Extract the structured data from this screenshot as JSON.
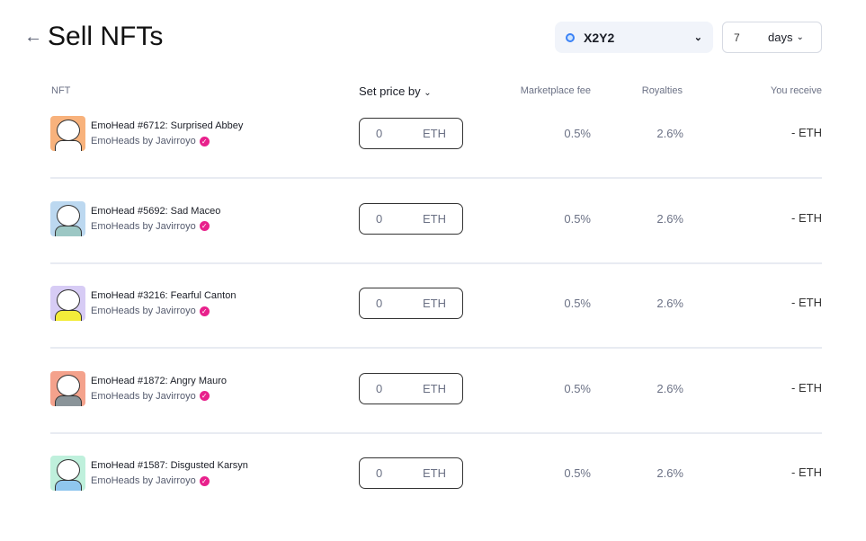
{
  "header": {
    "back_icon": "arrow-left-icon",
    "title": "Sell NFTs",
    "marketplace": "X2Y2",
    "duration_value": "7",
    "duration_unit": "days"
  },
  "columns": {
    "nft": "NFT",
    "set_price": "Set price by",
    "fee": "Marketplace fee",
    "royalties": "Royalties",
    "receive": "You receive"
  },
  "rows": [
    {
      "name": "EmoHead #6712: Surprised Abbey",
      "collection": "EmoHeads by Javirroyo",
      "price": "0",
      "currency": "ETH",
      "fee": "0.5%",
      "royalties": "2.6%",
      "receive": "- ETH",
      "color": "#f8b27c",
      "body": "#ffffff"
    },
    {
      "name": "EmoHead #5692: Sad Maceo",
      "collection": "EmoHeads by Javirroyo",
      "price": "0",
      "currency": "ETH",
      "fee": "0.5%",
      "royalties": "2.6%",
      "receive": "- ETH",
      "color": "#bcd8f0",
      "body": "#9cc7c4"
    },
    {
      "name": "EmoHead #3216: Fearful Canton",
      "collection": "EmoHeads by Javirroyo",
      "price": "0",
      "currency": "ETH",
      "fee": "0.5%",
      "royalties": "2.6%",
      "receive": "- ETH",
      "color": "#d7ccf5",
      "body": "#f3ec3a"
    },
    {
      "name": "EmoHead #1872: Angry Mauro",
      "collection": "EmoHeads by Javirroyo",
      "price": "0",
      "currency": "ETH",
      "fee": "0.5%",
      "royalties": "2.6%",
      "receive": "- ETH",
      "color": "#f4a28c",
      "body": "#8a9499"
    },
    {
      "name": "EmoHead #1587: Disgusted Karsyn",
      "collection": "EmoHeads by Javirroyo",
      "price": "0",
      "currency": "ETH",
      "fee": "0.5%",
      "royalties": "2.6%",
      "receive": "- ETH",
      "color": "#bff0dc",
      "body": "#8fc6ee"
    }
  ]
}
